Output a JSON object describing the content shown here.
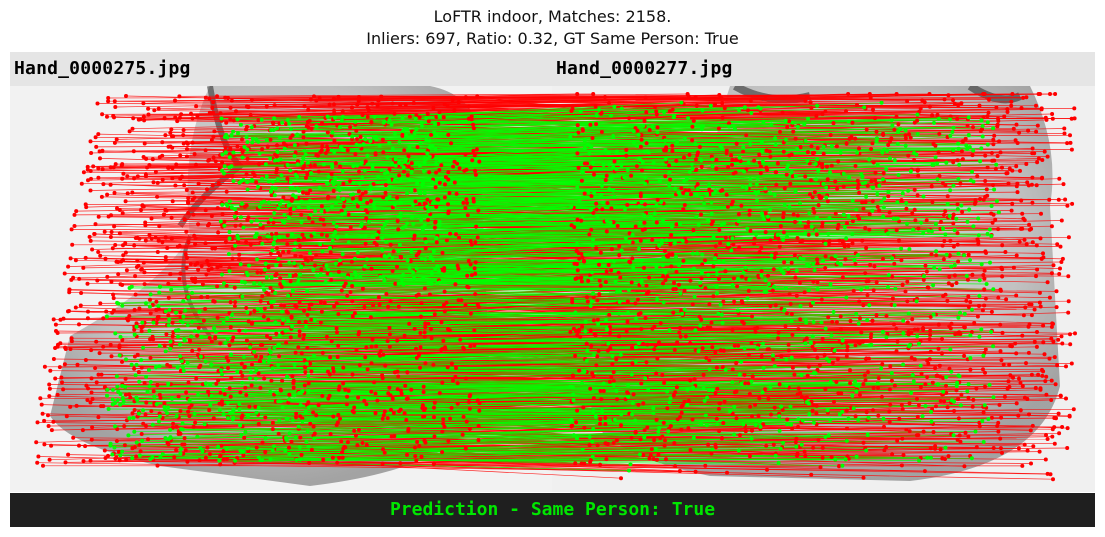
{
  "title": {
    "line1": "LoFTR indoor, Matches: 2158.",
    "line2": "Inliers: 697, Ratio: 0.32, GT Same Person: True"
  },
  "images": {
    "left_filename": "Hand_0000275.jpg",
    "right_filename": "Hand_0000277.jpg"
  },
  "footer": {
    "prediction": "Prediction - Same Person: True"
  },
  "match_stats": {
    "matches": 2158,
    "inliers": 697
  },
  "colors": {
    "inlier": "#00ff00",
    "outlier": "#ff0000",
    "header_bg": "#e5e5e5",
    "footer_bg": "#1f1f1f",
    "prediction_text": "#00e600"
  }
}
